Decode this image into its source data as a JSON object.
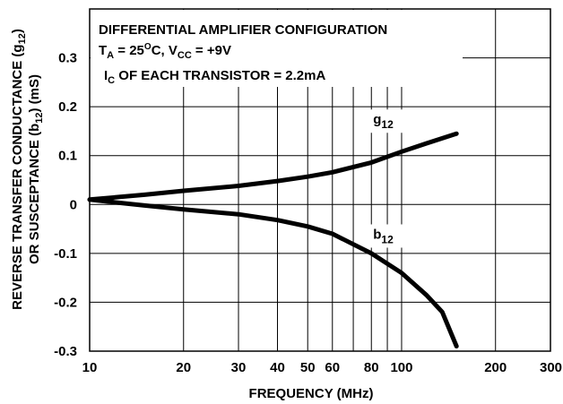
{
  "chart_data": {
    "type": "line",
    "xlabel": "FREQUENCY (MHz)",
    "ylabel_line1": "REVERSE TRANSFER CONDUCTANCE (g12)",
    "ylabel_line2": "OR SUSCEPTANCE (b12) (mS)",
    "x_scale": "log",
    "xlim": [
      10,
      300
    ],
    "ylim": [
      -0.3,
      0.4
    ],
    "x_ticks": [
      10,
      20,
      30,
      40,
      50,
      60,
      80,
      100,
      200,
      300
    ],
    "x_tick_labels": [
      "10",
      "20",
      "30",
      "40",
      "50",
      "60",
      "80",
      "100",
      "200",
      "300"
    ],
    "y_ticks": [
      0.3,
      0.2,
      0.1,
      0,
      -0.1,
      -0.2,
      -0.3
    ],
    "y_tick_labels": [
      "0.3",
      "0.2",
      "0.1",
      "0",
      "-0.1",
      "-0.2",
      "-0.3"
    ],
    "grid": true,
    "annotations": {
      "line1": "DIFFERENTIAL AMPLIFIER CONFIGURATION",
      "line2": "TA = 25OC, VCC = +9V",
      "line3": "IC OF EACH TRANSISTOR = 2.2mA"
    },
    "series": [
      {
        "name": "g12",
        "x": [
          10,
          15,
          20,
          30,
          40,
          50,
          60,
          80,
          100,
          120,
          150
        ],
        "y": [
          0.01,
          0.02,
          0.028,
          0.038,
          0.048,
          0.057,
          0.066,
          0.086,
          0.108,
          0.125,
          0.145
        ]
      },
      {
        "name": "b12",
        "x": [
          10,
          15,
          20,
          30,
          40,
          50,
          60,
          80,
          100,
          120,
          135,
          150
        ],
        "y": [
          0.01,
          -0.002,
          -0.01,
          -0.02,
          -0.032,
          -0.045,
          -0.06,
          -0.1,
          -0.14,
          -0.185,
          -0.22,
          -0.29
        ]
      }
    ]
  }
}
